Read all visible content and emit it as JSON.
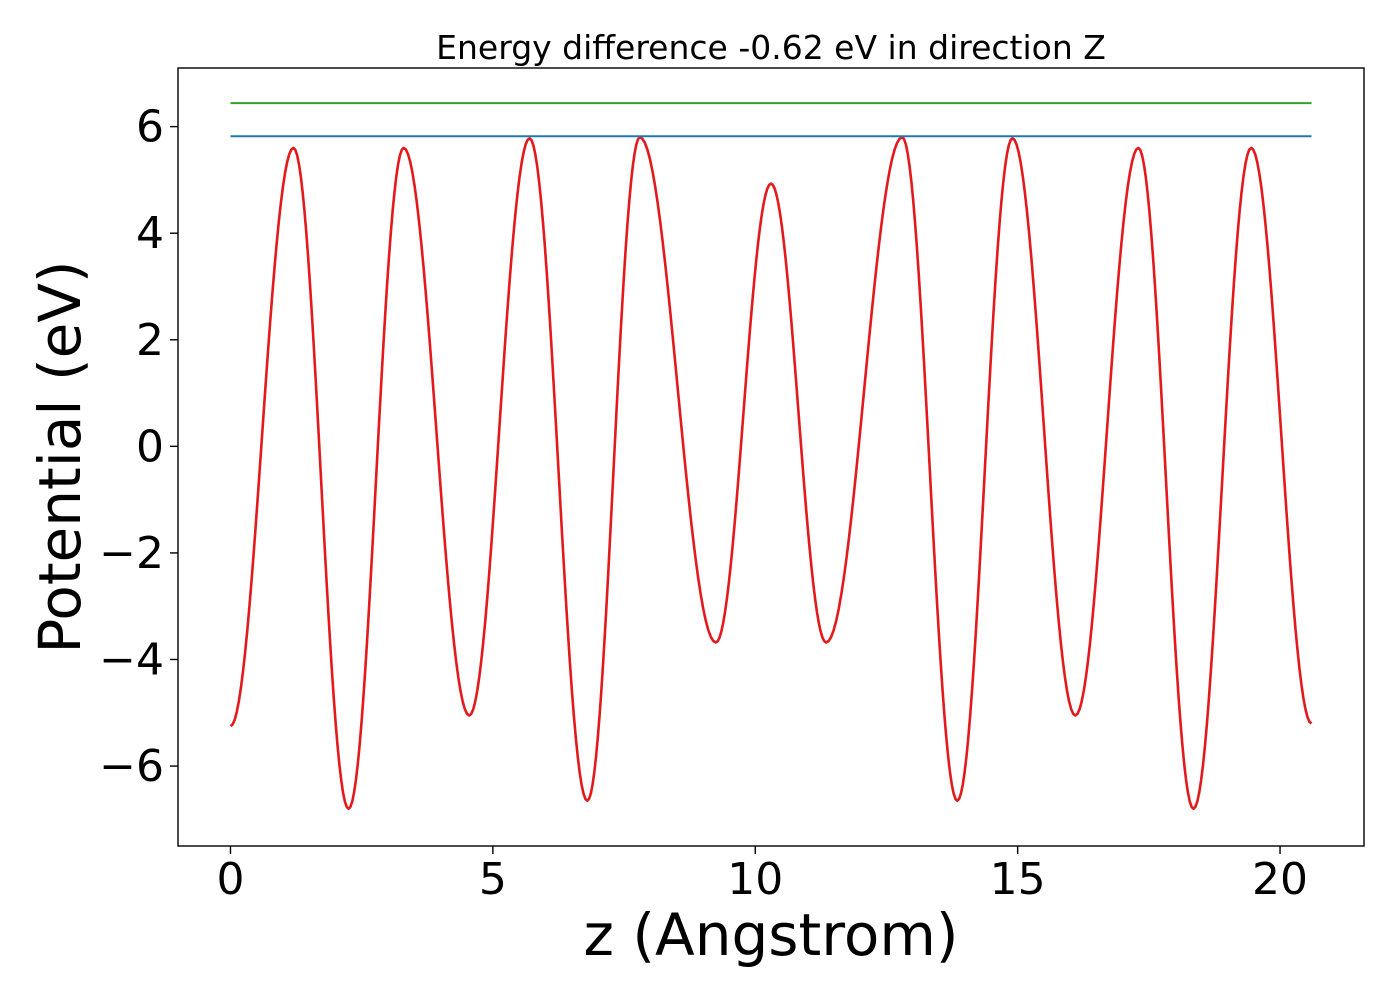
{
  "chart_data": {
    "type": "line",
    "title": "Energy difference -0.62 eV in direction Z",
    "xlabel": "z (Angstrom)",
    "ylabel": "Potential (eV)",
    "xlim": [
      -1.0,
      21.6
    ],
    "ylim": [
      -7.5,
      7.1
    ],
    "xticks": [
      0,
      5,
      10,
      15,
      20
    ],
    "xtick_labels": [
      "0",
      "5",
      "10",
      "15",
      "20"
    ],
    "yticks": [
      -6,
      -4,
      -2,
      0,
      2,
      4,
      6
    ],
    "ytick_labels": [
      "−6",
      "−4",
      "−2",
      "0",
      "2",
      "4",
      "6"
    ],
    "grid": false,
    "series": [
      {
        "color": "#e31a1c",
        "kind": "curve",
        "x": [
          0.0,
          1.2,
          2.25,
          3.3,
          4.55,
          5.7,
          6.8,
          7.8,
          9.25,
          10.3,
          11.35,
          12.8,
          13.85,
          14.9,
          16.1,
          17.3,
          18.35,
          19.45,
          20.6
        ],
        "y": [
          -5.25,
          5.6,
          -6.8,
          5.6,
          -5.05,
          5.78,
          -6.65,
          5.8,
          -3.68,
          4.93,
          -3.68,
          5.8,
          -6.65,
          5.78,
          -5.05,
          5.6,
          -6.8,
          5.6,
          -5.2
        ]
      },
      {
        "color": "#1f78b4",
        "kind": "hline",
        "x": [
          0.0,
          20.6
        ],
        "y": [
          5.82,
          5.82
        ]
      },
      {
        "color": "#33a02c",
        "kind": "hline",
        "x": [
          0.0,
          20.6
        ],
        "y": [
          6.44,
          6.44
        ]
      }
    ]
  }
}
